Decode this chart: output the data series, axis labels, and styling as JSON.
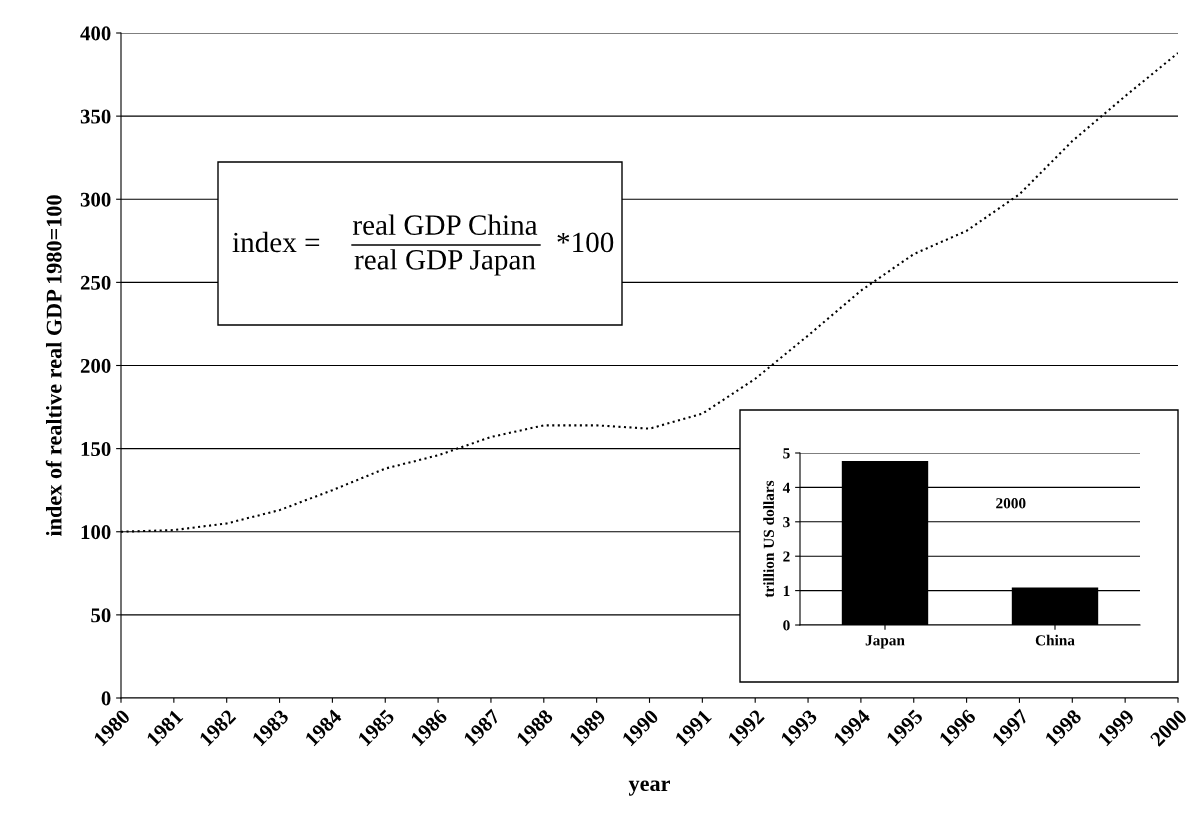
{
  "chart_data": [
    {
      "type": "line",
      "xlabel": "year",
      "ylabel": "index of realtive real GDP 1980=100",
      "x": [
        1980,
        1981,
        1982,
        1983,
        1984,
        1985,
        1986,
        1987,
        1988,
        1989,
        1990,
        1991,
        1992,
        1993,
        1994,
        1995,
        1996,
        1997,
        1998,
        1999,
        2000
      ],
      "series": [
        {
          "color": "#000000",
          "values": [
            100,
            101,
            105,
            113,
            125,
            138,
            146,
            157,
            164,
            164,
            162,
            171,
            192,
            218,
            245,
            267,
            281,
            303,
            335,
            362,
            388
          ]
        }
      ],
      "xlim": [
        1980,
        2000
      ],
      "xticks": [
        1980,
        1981,
        1982,
        1983,
        1984,
        1985,
        1986,
        1987,
        1988,
        1989,
        1990,
        1991,
        1992,
        1993,
        1994,
        1995,
        1996,
        1997,
        1998,
        1999,
        2000
      ],
      "ylim": [
        0,
        400
      ],
      "yticks": [
        0,
        50,
        100,
        150,
        200,
        250,
        300,
        350,
        400
      ],
      "grid": "y",
      "line_style": "dotted",
      "annotations": [
        "index =",
        "real GDP China",
        "real GDP Japan",
        "*100"
      ]
    },
    {
      "type": "bar",
      "categories": [
        "Japan",
        "China"
      ],
      "values": [
        4.75,
        1.07
      ],
      "color": "#000000",
      "ylabel": "trillion US dollars",
      "ylim": [
        0,
        5
      ],
      "yticks": [
        0,
        1,
        2,
        3,
        4,
        5
      ],
      "grid": "y",
      "annotations": [
        "2000"
      ]
    }
  ]
}
